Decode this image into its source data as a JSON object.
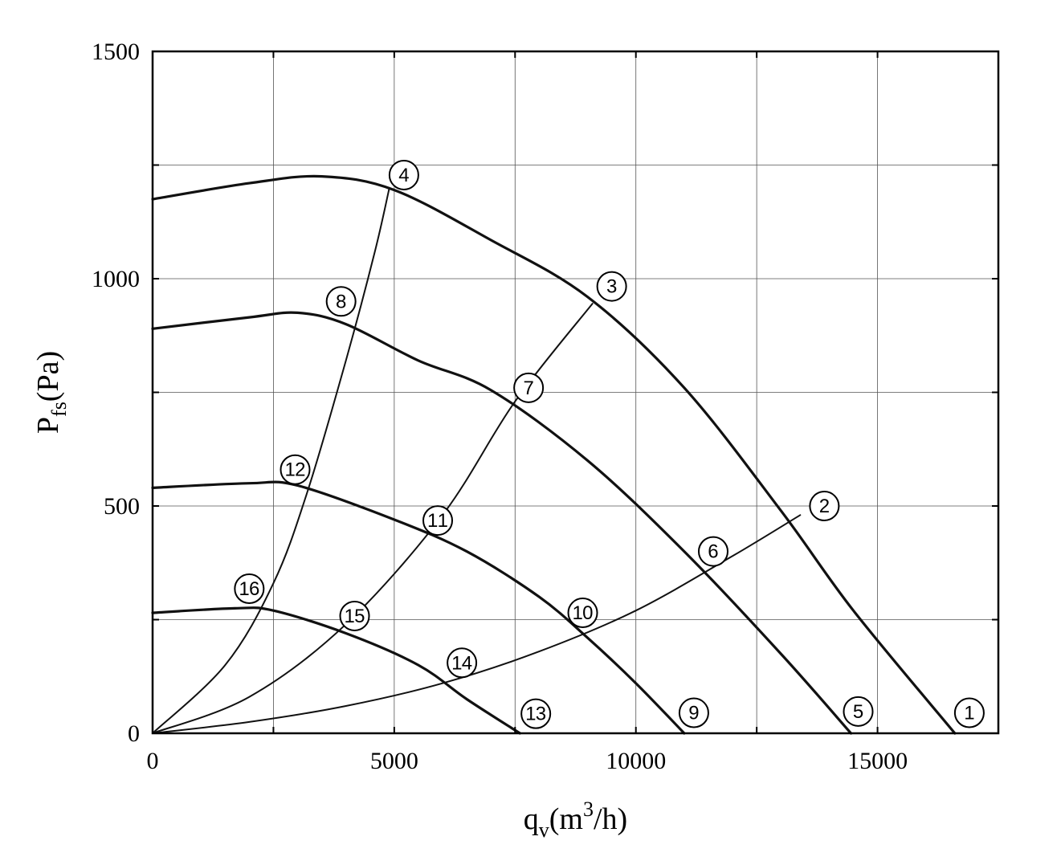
{
  "chart_data": {
    "type": "line",
    "title": "",
    "xlabel": {
      "main": "q",
      "sub": "v",
      "rest": "(m",
      "sup": "3",
      "end": "/h)"
    },
    "ylabel": {
      "main": "P",
      "sub": "fs",
      "rest": "(Pa)"
    },
    "xlim": [
      0,
      17500
    ],
    "ylim": [
      0,
      1500
    ],
    "x_ticks": [
      0,
      5000,
      10000,
      15000
    ],
    "y_ticks": [
      0,
      500,
      1000,
      1500
    ],
    "grid": true,
    "fan_curves": [
      {
        "x": [
          0,
          2000,
          3500,
          5000,
          7000,
          9000,
          11000,
          13000,
          14500,
          16600
        ],
        "y": [
          1175,
          1210,
          1225,
          1195,
          1085,
          960,
          760,
          490,
          270,
          0
        ]
      },
      {
        "x": [
          0,
          2000,
          3000,
          4000,
          5500,
          7000,
          9000,
          11000,
          13000,
          14450
        ],
        "y": [
          890,
          915,
          925,
          900,
          820,
          755,
          600,
          400,
          175,
          0
        ]
      },
      {
        "x": [
          0,
          2000,
          3000,
          5000,
          6500,
          8000,
          9000,
          10000,
          11000
        ],
        "y": [
          540,
          550,
          545,
          470,
          400,
          300,
          210,
          110,
          0
        ]
      },
      {
        "x": [
          0,
          1700,
          2500,
          4000,
          5500,
          6500,
          7600
        ],
        "y": [
          265,
          275,
          270,
          220,
          150,
          75,
          0
        ]
      }
    ],
    "system_curves": [
      {
        "x": [
          0,
          1500,
          2500,
          3200,
          4000,
          4600,
          4900
        ],
        "y": [
          0,
          150,
          330,
          530,
          820,
          1060,
          1200
        ]
      },
      {
        "x": [
          0,
          2000,
          4000,
          6000,
          7500,
          9100
        ],
        "y": [
          0,
          80,
          240,
          480,
          730,
          945
        ]
      },
      {
        "x": [
          0,
          2000,
          4000,
          6000,
          8000,
          10000,
          12000,
          13400
        ],
        "y": [
          0,
          25,
          60,
          110,
          180,
          270,
          390,
          480
        ]
      }
    ],
    "markers": [
      {
        "label": "1",
        "x": 16900,
        "y": 45
      },
      {
        "label": "2",
        "x": 13900,
        "y": 500
      },
      {
        "label": "3",
        "x": 9500,
        "y": 983
      },
      {
        "label": "4",
        "x": 5200,
        "y": 1228
      },
      {
        "label": "5",
        "x": 14600,
        "y": 48
      },
      {
        "label": "6",
        "x": 11600,
        "y": 400
      },
      {
        "label": "7",
        "x": 7780,
        "y": 760
      },
      {
        "label": "8",
        "x": 3900,
        "y": 950
      },
      {
        "label": "9",
        "x": 11200,
        "y": 45
      },
      {
        "label": "10",
        "x": 8900,
        "y": 265
      },
      {
        "label": "11",
        "x": 5900,
        "y": 468
      },
      {
        "label": "12",
        "x": 2950,
        "y": 580
      },
      {
        "label": "13",
        "x": 7930,
        "y": 43
      },
      {
        "label": "14",
        "x": 6400,
        "y": 155
      },
      {
        "label": "15",
        "x": 4180,
        "y": 258
      },
      {
        "label": "16",
        "x": 2000,
        "y": 318
      }
    ]
  }
}
